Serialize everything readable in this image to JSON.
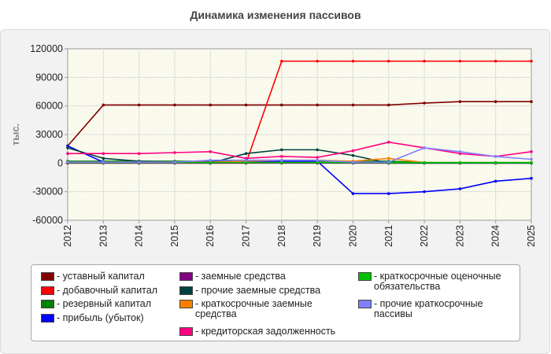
{
  "title": "Динамика изменения пассивов",
  "chart_data": {
    "type": "line",
    "ylabel": "тыс.",
    "ylim": [
      -60000,
      120000
    ],
    "yticks": [
      -60000,
      -30000,
      0,
      30000,
      60000,
      90000,
      120000
    ],
    "x": [
      "2012",
      "2013",
      "2014",
      "2015",
      "2016",
      "2017",
      "2018",
      "2019",
      "2020",
      "2021",
      "2022",
      "2023",
      "2024",
      "2025"
    ],
    "grid": true,
    "legend_position": "bottom",
    "series": [
      {
        "name": "- уставный капитал",
        "color": "#800000",
        "values": [
          18000,
          61000,
          61000,
          61000,
          61000,
          61000,
          61000,
          61000,
          61000,
          61000,
          63000,
          64500,
          64500,
          64500
        ]
      },
      {
        "name": "- добавочный капитал",
        "color": "#ff0000",
        "values": [
          0,
          0,
          0,
          0,
          0,
          0,
          107000,
          107000,
          107000,
          107000,
          107000,
          107000,
          107000,
          107000
        ]
      },
      {
        "name": "- резервный капитал",
        "color": "#008000",
        "values": [
          2000,
          2000,
          2000,
          2000,
          2000,
          2000,
          2000,
          2000,
          2000,
          2000,
          500,
          500,
          500,
          500
        ]
      },
      {
        "name": "- прибыль (убыток)",
        "color": "#0000ff",
        "values": [
          18000,
          1000,
          500,
          500,
          1500,
          1500,
          2000,
          2000,
          -32000,
          -32000,
          -30000,
          -27000,
          -19000,
          -16000
        ]
      },
      {
        "name": "- заемные средства",
        "color": "#800080",
        "values": [
          0,
          0,
          0,
          0,
          0,
          0,
          0,
          0,
          0,
          0,
          0,
          0,
          0,
          0
        ]
      },
      {
        "name": "- прочие заемные средства",
        "color": "#004040",
        "values": [
          16000,
          5000,
          2000,
          1000,
          0,
          10000,
          14000,
          14000,
          8000,
          0,
          0,
          0,
          0,
          0
        ]
      },
      {
        "name": "- краткосрочные заемные средства",
        "color": "#ff8000",
        "values": [
          1000,
          1000,
          1000,
          1000,
          1000,
          2000,
          3000,
          3000,
          2000,
          5000,
          500,
          500,
          500,
          500
        ]
      },
      {
        "name": "- кредиторская задолженность",
        "color": "#ff0080",
        "values": [
          10000,
          10000,
          10000,
          11000,
          12000,
          5000,
          7000,
          6000,
          13000,
          22000,
          16000,
          10000,
          7000,
          12000
        ]
      },
      {
        "name": "- краткосрочные оценочные обязательства",
        "color": "#00c000",
        "values": [
          500,
          500,
          500,
          500,
          500,
          500,
          500,
          500,
          500,
          500,
          500,
          500,
          500,
          500
        ]
      },
      {
        "name": "- прочие краткосрочные пассивы",
        "color": "#8080ff",
        "values": [
          1000,
          1000,
          1000,
          1000,
          3000,
          3000,
          3000,
          3000,
          1000,
          1000,
          16000,
          12000,
          7000,
          4000
        ]
      }
    ]
  },
  "legend": {
    "items": [
      {
        "lines": [
          "- уставный капитал"
        ],
        "color": "#800000",
        "col": 0,
        "row": 0
      },
      {
        "lines": [
          "- добавочный капитал"
        ],
        "color": "#ff0000",
        "col": 0,
        "row": 1
      },
      {
        "lines": [
          "- резервный капитал"
        ],
        "color": "#008000",
        "col": 0,
        "row": 2
      },
      {
        "lines": [
          "- прибыль (убыток)"
        ],
        "color": "#0000ff",
        "col": 0,
        "row": 3
      },
      {
        "lines": [
          "- заемные средства"
        ],
        "color": "#800080",
        "col": 1,
        "row": 0
      },
      {
        "lines": [
          "- прочие заемные средства"
        ],
        "color": "#004040",
        "col": 1,
        "row": 1
      },
      {
        "lines": [
          "- краткосрочные заемные",
          "средства"
        ],
        "color": "#ff8000",
        "col": 1,
        "row": 2
      },
      {
        "lines": [
          "- кредиторская задолженность"
        ],
        "color": "#ff0080",
        "col": 1,
        "row": 4
      },
      {
        "lines": [
          "- краткосрочные оценочные",
          "обязательства"
        ],
        "color": "#00c000",
        "col": 2,
        "row": 0
      },
      {
        "lines": [
          "- прочие краткосрочные",
          "пассивы"
        ],
        "color": "#8080ff",
        "col": 2,
        "row": 2
      }
    ]
  }
}
